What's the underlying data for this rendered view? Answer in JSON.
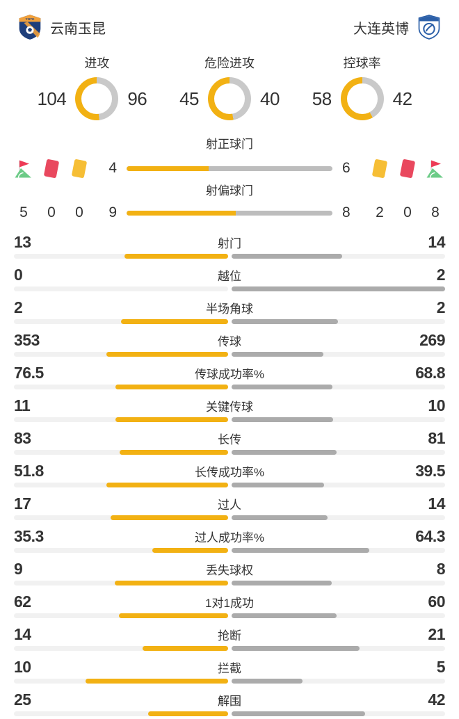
{
  "colors": {
    "accent": "#F2B113",
    "donut_away": "#C9C9C9",
    "shots_away": "#BDBDBD",
    "bars_away": "#ABABAB",
    "track": "#F1F1F1",
    "text": "#333333",
    "red_card": "#E9485E",
    "yellow_card": "#F6BE35",
    "flag_red": "#ED3B56",
    "flag_green": "#6CCB87",
    "home_badge_blue": "#1E3E7B",
    "home_badge_orange": "#F0A03C",
    "away_badge_blue": "#2B5FA8"
  },
  "header": {
    "home_team": "云南玉昆",
    "away_team": "大连英博",
    "home_badge_text": "YNYK"
  },
  "donuts": [
    {
      "label": "进攻",
      "home": 104,
      "away": 96
    },
    {
      "label": "危险进攻",
      "home": 45,
      "away": 40
    },
    {
      "label": "控球率",
      "home": 58,
      "away": 42
    }
  ],
  "shots": [
    {
      "label": "射正球门",
      "home": 4,
      "away": 6
    },
    {
      "label": "射偏球门",
      "home": 9,
      "away": 8
    }
  ],
  "cards": {
    "home": {
      "corner": 5,
      "red": 0,
      "yellow": 0
    },
    "away": {
      "yellow": 2,
      "red": 0,
      "corner": 8
    }
  },
  "stats": [
    {
      "label": "射门",
      "home": 13,
      "away": 14
    },
    {
      "label": "越位",
      "home": 0,
      "away": 2
    },
    {
      "label": "半场角球",
      "home": 2,
      "away": 2
    },
    {
      "label": "传球",
      "home": 353,
      "away": 269
    },
    {
      "label": "传球成功率%",
      "home": 76.5,
      "away": 68.8
    },
    {
      "label": "关键传球",
      "home": 11,
      "away": 10
    },
    {
      "label": "长传",
      "home": 83,
      "away": 81
    },
    {
      "label": "长传成功率%",
      "home": 51.8,
      "away": 39.5
    },
    {
      "label": "过人",
      "home": 17,
      "away": 14
    },
    {
      "label": "过人成功率%",
      "home": 35.3,
      "away": 64.3
    },
    {
      "label": "丢失球权",
      "home": 9,
      "away": 8
    },
    {
      "label": "1对1成功",
      "home": 62,
      "away": 60
    },
    {
      "label": "抢断",
      "home": 14,
      "away": 21
    },
    {
      "label": "拦截",
      "home": 10,
      "away": 5
    },
    {
      "label": "解围",
      "home": 25,
      "away": 42
    }
  ],
  "chart_data": [
    {
      "type": "pie",
      "title": "进攻",
      "series": [
        {
          "name": "云南玉昆",
          "value": 104
        },
        {
          "name": "大连英博",
          "value": 96
        }
      ]
    },
    {
      "type": "pie",
      "title": "危险进攻",
      "series": [
        {
          "name": "云南玉昆",
          "value": 45
        },
        {
          "name": "大连英博",
          "value": 40
        }
      ]
    },
    {
      "type": "pie",
      "title": "控球率",
      "series": [
        {
          "name": "云南玉昆",
          "value": 58
        },
        {
          "name": "大连英博",
          "value": 42
        }
      ]
    },
    {
      "type": "bar",
      "title": "比赛技术统计",
      "categories": [
        "射正球门",
        "射偏球门",
        "射门",
        "越位",
        "半场角球",
        "传球",
        "传球成功率%",
        "关键传球",
        "长传",
        "长传成功率%",
        "过人",
        "过人成功率%",
        "丢失球权",
        "1对1成功",
        "抢断",
        "拦截",
        "解围"
      ],
      "series": [
        {
          "name": "云南玉昆",
          "values": [
            4,
            9,
            13,
            0,
            2,
            353,
            76.5,
            11,
            83,
            51.8,
            17,
            35.3,
            9,
            62,
            14,
            10,
            25
          ]
        },
        {
          "name": "大连英博",
          "values": [
            6,
            8,
            14,
            2,
            2,
            269,
            68.8,
            10,
            81,
            39.5,
            14,
            64.3,
            8,
            60,
            21,
            5,
            42
          ]
        }
      ],
      "legend_position": "none",
      "grid": false
    },
    {
      "type": "table",
      "title": "角球与红黄牌",
      "categories": [
        "角球",
        "红牌",
        "黄牌"
      ],
      "series": [
        {
          "name": "云南玉昆",
          "values": [
            5,
            0,
            0
          ]
        },
        {
          "name": "大连英博",
          "values": [
            8,
            0,
            2
          ]
        }
      ]
    }
  ]
}
